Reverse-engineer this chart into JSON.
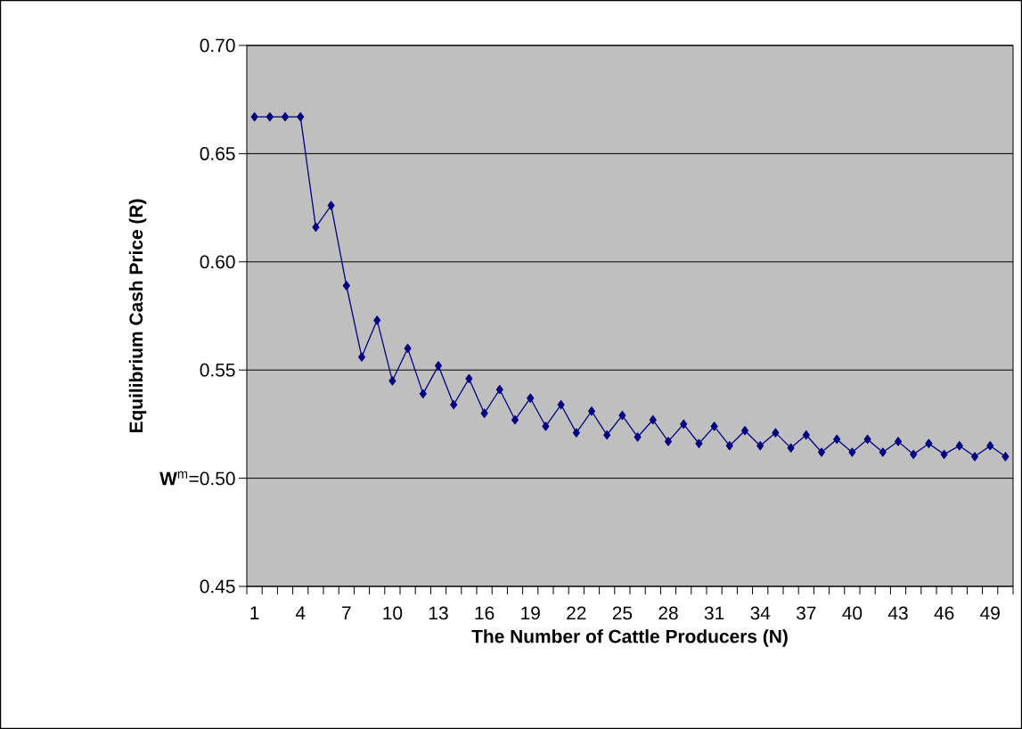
{
  "chart_data": {
    "type": "line",
    "xlabel": "The Number of Cattle Producers (N)",
    "ylabel": "Equilibrium Cash Price (R)",
    "categories": [
      "1",
      null,
      null,
      "4",
      null,
      null,
      "7",
      null,
      null,
      "10",
      null,
      null,
      "13",
      null,
      null,
      "16",
      null,
      null,
      "19",
      null,
      null,
      "22",
      null,
      null,
      "25",
      null,
      null,
      "28",
      null,
      null,
      "31",
      null,
      null,
      "34",
      null,
      null,
      "37",
      null,
      null,
      "40",
      null,
      null,
      "43",
      null,
      null,
      "46",
      null,
      null,
      "49",
      null
    ],
    "series": [
      {
        "color": "#000080",
        "values": [
          0.667,
          0.667,
          0.667,
          0.667,
          0.616,
          0.626,
          0.589,
          0.556,
          0.573,
          0.545,
          0.56,
          0.539,
          0.552,
          0.534,
          0.546,
          0.53,
          0.541,
          0.527,
          0.537,
          0.524,
          0.534,
          0.521,
          0.531,
          0.52,
          0.529,
          0.519,
          0.527,
          0.517,
          0.525,
          0.516,
          0.524,
          0.515,
          0.522,
          0.515,
          0.521,
          0.514,
          0.52,
          0.512,
          0.518,
          0.512,
          0.518,
          0.512,
          0.517,
          0.511,
          0.516,
          0.511,
          0.515,
          0.51,
          0.515,
          0.51
        ]
      }
    ],
    "ylim": [
      0.45,
      0.7
    ],
    "yticks": [
      0.45,
      {
        "value": 0.5,
        "label": "**W**$^{m}$=0.50"
      },
      0.55,
      {
        "value": 0.6,
        "label": "0.60"
      },
      0.65,
      {
        "value": 0.7,
        "label": "0.70"
      }
    ],
    "grid": "y",
    "legend": false,
    "marker": "diamond",
    "line_style": "solid"
  }
}
